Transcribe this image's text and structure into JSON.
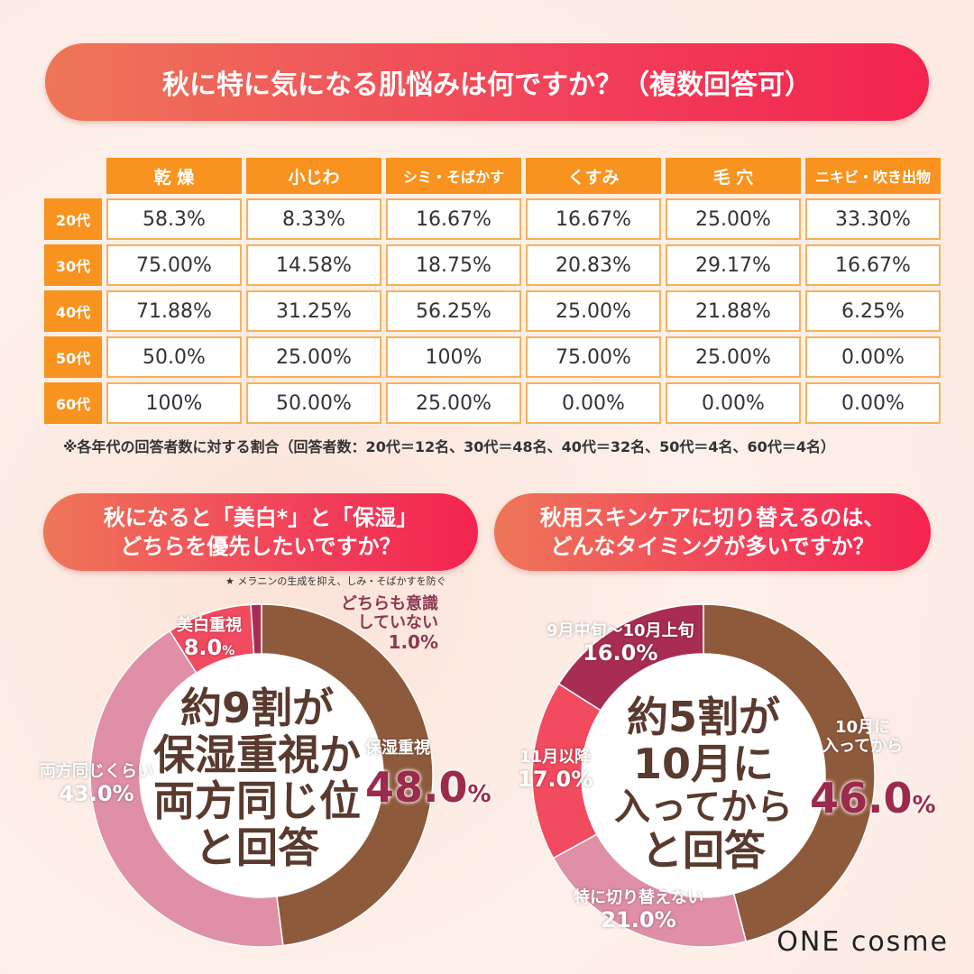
{
  "header": {
    "title": "秋に特に気になる肌悩みは何ですか？（複数回答可）"
  },
  "table": {
    "columns": [
      "乾 燥",
      "小じわ",
      "シミ・そばかす",
      "くすみ",
      "毛 穴",
      "ニキビ・吹き出物"
    ],
    "rows": [
      {
        "label": "20代",
        "cells": [
          "58.3%",
          "8.33%",
          "16.67%",
          "16.67%",
          "25.00%",
          "33.30%"
        ]
      },
      {
        "label": "30代",
        "cells": [
          "75.00%",
          "14.58%",
          "18.75%",
          "20.83%",
          "29.17%",
          "16.67%"
        ]
      },
      {
        "label": "40代",
        "cells": [
          "71.88%",
          "31.25%",
          "56.25%",
          "25.00%",
          "21.88%",
          "6.25%"
        ]
      },
      {
        "label": "50代",
        "cells": [
          "50.0%",
          "25.00%",
          "100%",
          "75.00%",
          "25.00%",
          "0.00%"
        ]
      },
      {
        "label": "60代",
        "cells": [
          "100%",
          "50.00%",
          "25.00%",
          "0.00%",
          "0.00%",
          "0.00%"
        ]
      }
    ],
    "footnote": "※各年代の回答者数に対する割合（回答者数：20代＝12名、30代＝48名、40代＝32名、50代＝4名、60代＝4名）"
  },
  "left": {
    "question_line1": "秋になると「美白*」と「保湿」",
    "question_line2": "どちらを優先したいですか？",
    "asterisk_note": "★ メラニンの生成を抑え、しみ・そばかすを防ぐ",
    "center_line1": "約9割が",
    "center_line2": "保湿重視か",
    "center_line3": "両方同じ位",
    "center_line4": "と回答",
    "labels": {
      "hoshitsu_name": "保湿重視",
      "hoshitsu_pct": "48.0",
      "pct_sign": "%",
      "ryouhou_name": "両方同じくらい",
      "ryouhou_pct": "43.0%",
      "bihaku_name": "美白重視",
      "bihaku_pct": "8.0",
      "bihaku_sign": "%",
      "neither_name1": "どちらも意識",
      "neither_name2": "していない",
      "neither_pct": "1.0%"
    }
  },
  "right": {
    "question_line1": "秋用スキンケアに切り替えるのは、",
    "question_line2": "どんなタイミングが多いですか？",
    "center_line1": "約5割が",
    "center_line2": "10月に",
    "center_line3": "入ってから",
    "center_line4": "と回答",
    "labels": {
      "oct_name1": "10月に",
      "oct_name2": "入ってから",
      "oct_pct": "46.0",
      "pct_sign": "%",
      "none_name": "特に切り替えない",
      "none_pct": "21.0%",
      "nov_name": "11月以降",
      "nov_pct": "17.0%",
      "sep_name": "9月中旬～10月上旬",
      "sep_pct": "16.0%"
    }
  },
  "brand": {
    "logo": "ONE cosme"
  },
  "chart_data": [
    {
      "type": "table",
      "title": "秋に特に気になる肌悩みは何ですか？（複数回答可）",
      "columns": [
        "乾 燥",
        "小じわ",
        "シミ・そばかす",
        "くすみ",
        "毛 穴",
        "ニキビ・吹き出物"
      ],
      "row_labels": [
        "20代",
        "30代",
        "40代",
        "50代",
        "60代"
      ],
      "values": [
        [
          58.3,
          8.33,
          16.67,
          16.67,
          25.0,
          33.3
        ],
        [
          75.0,
          14.58,
          18.75,
          20.83,
          29.17,
          16.67
        ],
        [
          71.88,
          31.25,
          56.25,
          25.0,
          21.88,
          6.25
        ],
        [
          50.0,
          25.0,
          100,
          75.0,
          25.0,
          0.0
        ],
        [
          100,
          50.0,
          25.0,
          0.0,
          0.0,
          0.0
        ]
      ]
    },
    {
      "type": "pie",
      "title": "秋になると「美白*」と「保湿」どちらを優先したいですか？",
      "categories": [
        "保湿重視",
        "両方同じくらい",
        "美白重視",
        "どちらも意識していない"
      ],
      "values": [
        48.0,
        43.0,
        8.0,
        1.0
      ],
      "colors": [
        "#8e5a3c",
        "#df8fa6",
        "#f24a5f",
        "#a82d52"
      ]
    },
    {
      "type": "pie",
      "title": "秋用スキンケアに切り替えるのは、どんなタイミングが多いですか？",
      "categories": [
        "10月に入ってから",
        "特に切り替えない",
        "11月以降",
        "9月中旬～10月上旬"
      ],
      "values": [
        46.0,
        21.0,
        17.0,
        16.0
      ],
      "colors": [
        "#8e5a3c",
        "#df8fa6",
        "#f24a5f",
        "#a82d52"
      ]
    }
  ]
}
